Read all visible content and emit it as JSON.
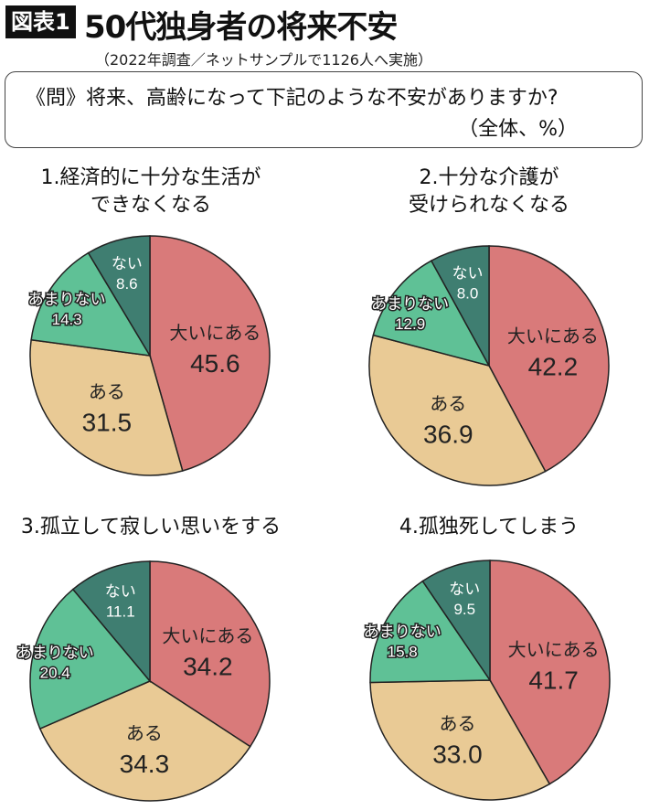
{
  "header": {
    "badge": "図表1",
    "title": "50代独身者の将来不安",
    "subtitle": "（2022年調査／ネットサンプルで1126人へ実施）"
  },
  "question": {
    "text": "《問》将来、高齢になって下記のような不安がありますか?",
    "unit": "（全体、%）"
  },
  "colors": {
    "大いにある": "#d97a7a",
    "ある": "#e9ca95",
    "あまりない": "#5fc196",
    "ない": "#3f7e71"
  },
  "chart_data": [
    {
      "type": "pie",
      "title": "1.経済的に十分な生活が\nできなくなる",
      "categories": [
        "大いにある",
        "ある",
        "あまりない",
        "ない"
      ],
      "values": [
        45.6,
        31.5,
        14.3,
        8.6
      ]
    },
    {
      "type": "pie",
      "title": "2.十分な介護が\n受けられなくなる",
      "categories": [
        "大いにある",
        "ある",
        "あまりない",
        "ない"
      ],
      "values": [
        42.2,
        36.9,
        12.9,
        8.0
      ]
    },
    {
      "type": "pie",
      "title": "3.孤立して寂しい思いをする",
      "categories": [
        "大いにある",
        "ある",
        "あまりない",
        "ない"
      ],
      "values": [
        34.2,
        34.3,
        20.4,
        11.1
      ]
    },
    {
      "type": "pie",
      "title": "4.孤独死してしまう",
      "categories": [
        "大いにある",
        "ある",
        "あまりない",
        "ない"
      ],
      "values": [
        41.7,
        33.0,
        15.8,
        9.5
      ]
    }
  ]
}
